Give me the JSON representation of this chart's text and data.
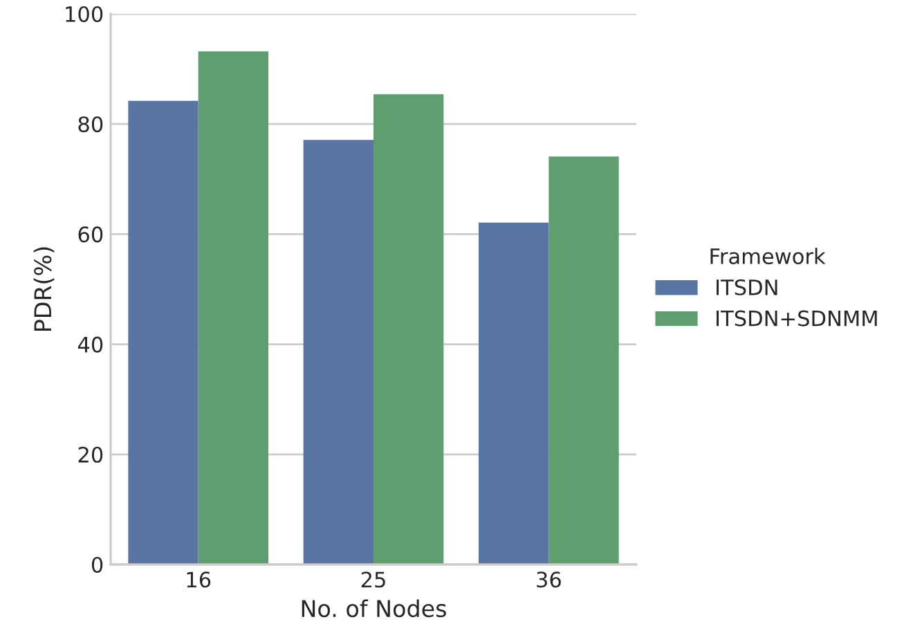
{
  "chart_data": {
    "type": "bar",
    "xlabel": "No. of Nodes",
    "ylabel": "PDR(%)",
    "legend_title": "Framework",
    "categories": [
      "16",
      "25",
      "36"
    ],
    "series": [
      {
        "name": "ITSDN",
        "color": "#5975a4",
        "values": [
          84.2,
          77.1,
          62.1
        ]
      },
      {
        "name": "ITSDN+SDNMM",
        "color": "#5f9e6e",
        "values": [
          93.2,
          85.4,
          74.1
        ]
      }
    ],
    "ylim": [
      0,
      100
    ],
    "yticks": [
      0,
      20,
      40,
      60,
      80,
      100
    ],
    "grid": "y",
    "legend": "right"
  }
}
